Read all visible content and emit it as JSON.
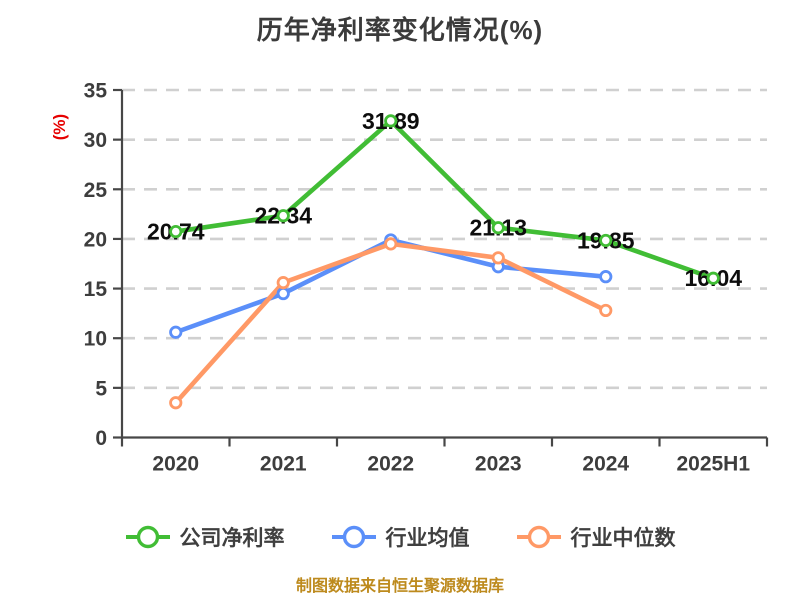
{
  "page": {
    "title": "历年净利率变化情况(%)",
    "watermark": "制图数据来自恒生聚源数据库"
  },
  "chart_data": {
    "type": "line",
    "title": "历年净利率变化情况(%)",
    "ylabel": "(%)",
    "xlabel": "",
    "categories": [
      "2020",
      "2021",
      "2022",
      "2023",
      "2024",
      "2025H1"
    ],
    "series": [
      {
        "name": "公司净利率",
        "color": "#41bd35",
        "marker": "circle-white-fill",
        "show_labels": true,
        "values": [
          20.74,
          22.34,
          31.89,
          21.13,
          19.85,
          16.04
        ]
      },
      {
        "name": "行业均值",
        "color": "#5b8ff9",
        "marker": "circle-white-fill",
        "show_labels": false,
        "values": [
          10.6,
          14.5,
          19.9,
          17.2,
          16.2,
          null
        ]
      },
      {
        "name": "行业中位数",
        "color": "#ff9966",
        "marker": "circle-white-fill",
        "show_labels": false,
        "values": [
          3.5,
          15.6,
          19.5,
          18.1,
          12.8,
          null
        ]
      }
    ],
    "ylim": [
      0,
      35
    ],
    "ytick_step": 5,
    "grid": "horizontal-dashed",
    "legend_position": "bottom",
    "styles": {
      "background": "#ffffff",
      "title_color": "#3b3b3b",
      "axis_color": "#474747",
      "tick_label_color": "#3d3d3d",
      "grid_color": "#d0d0d0",
      "data_label_color": "#0d0d0d",
      "ylabel_color": "#e60000",
      "watermark_color": "#bd8a1d"
    }
  }
}
